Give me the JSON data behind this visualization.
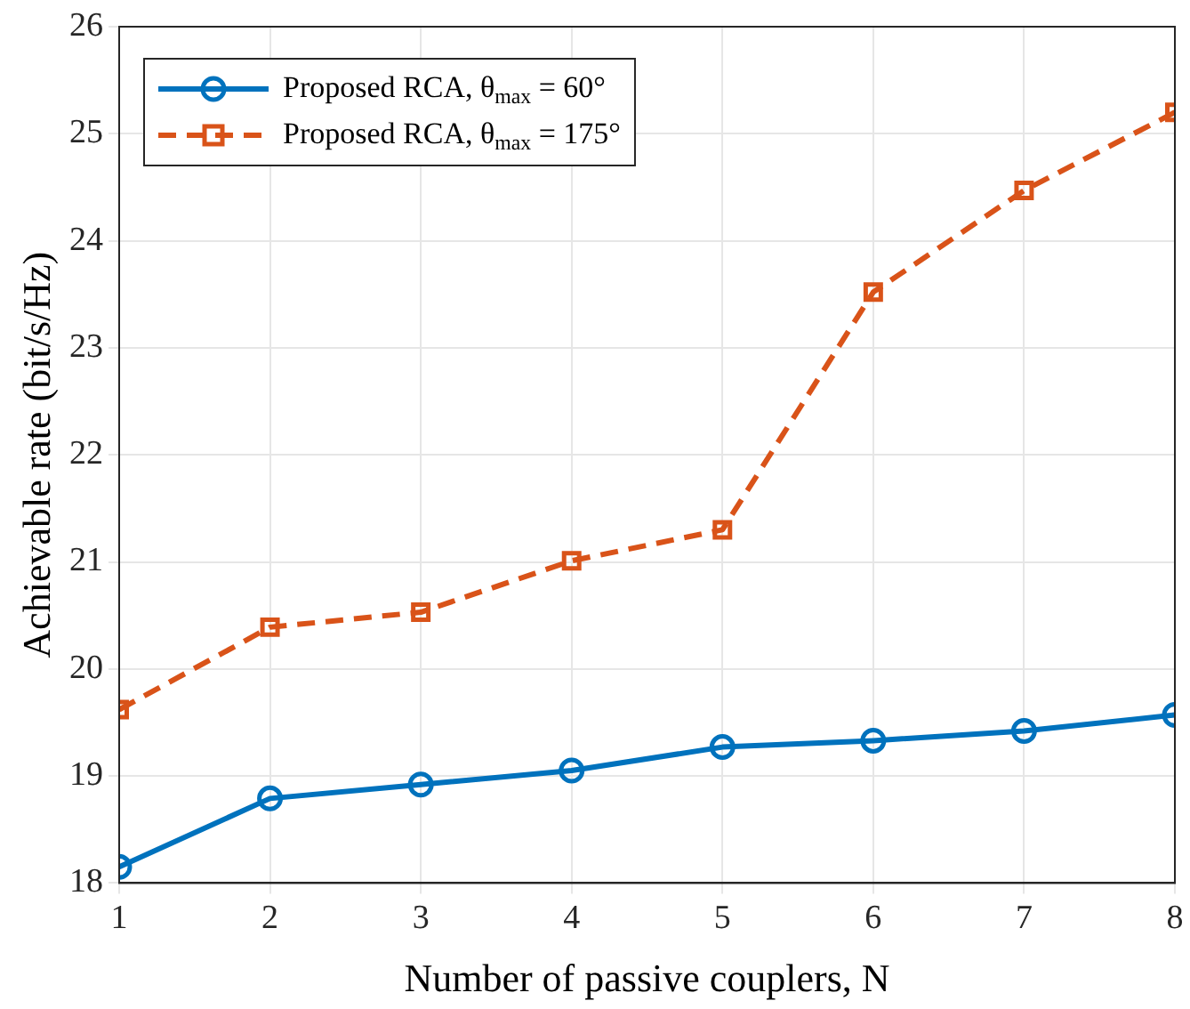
{
  "chart_data": {
    "type": "line",
    "xlabel": "Number of passive couplers, N",
    "ylabel": "Achievable rate (bit/s/Hz)",
    "x": [
      1,
      2,
      3,
      4,
      5,
      6,
      7,
      8
    ],
    "xlim": [
      1,
      8
    ],
    "xticks": [
      1,
      2,
      3,
      4,
      5,
      6,
      7,
      8
    ],
    "ylim": [
      18,
      26
    ],
    "yticks": [
      18,
      19,
      20,
      21,
      22,
      23,
      24,
      25,
      26
    ],
    "grid": true,
    "legend": "top left",
    "series": [
      {
        "name": "Proposed RCA, θ$_{max}$ = 60°",
        "color": "#0072bd",
        "marker": "circle",
        "line_style": "solid",
        "values": [
          18.15,
          18.79,
          18.92,
          19.05,
          19.27,
          19.33,
          19.42,
          19.57
        ]
      },
      {
        "name": "Proposed RCA, θ$_{max}$ = 175°",
        "color": "#d95319",
        "marker": "square",
        "line_style": "dashed",
        "values": [
          19.62,
          20.39,
          20.53,
          21.01,
          21.3,
          23.52,
          24.47,
          25.2
        ]
      }
    ]
  }
}
